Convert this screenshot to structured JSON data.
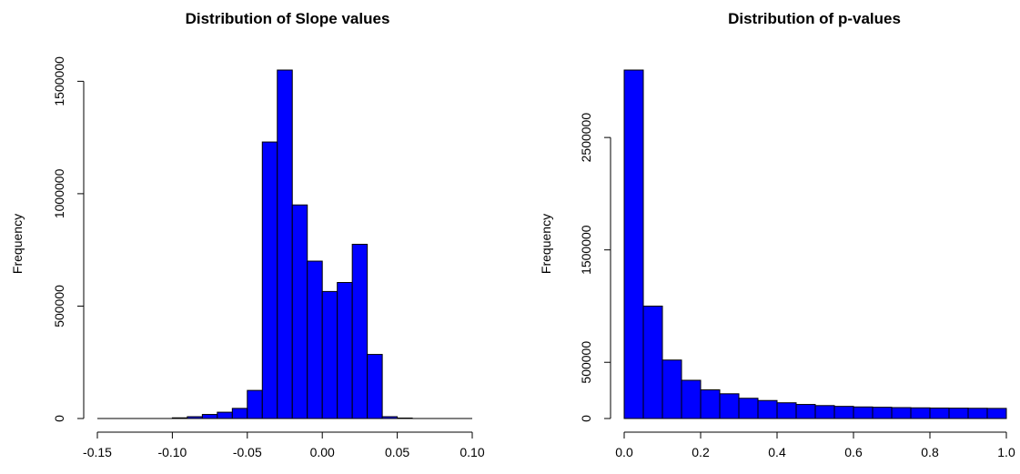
{
  "colors": {
    "bar_fill": "#0000ff",
    "bar_stroke": "#000000"
  },
  "chart_data": [
    {
      "type": "bar",
      "title": "Distribution of Slope values",
      "xlabel": "",
      "ylabel": "Frequency",
      "xlim": [
        -0.15,
        0.1
      ],
      "ylim": [
        0,
        1550000
      ],
      "x_ticks": [
        -0.15,
        -0.1,
        -0.05,
        0.0,
        0.05,
        0.1
      ],
      "x_tick_labels": [
        "-0.15",
        "-0.10",
        "-0.05",
        "0.00",
        "0.05",
        "0.10"
      ],
      "y_ticks": [
        0,
        500000,
        1000000,
        1500000
      ],
      "y_tick_labels": [
        "0",
        "500000",
        "1000000",
        "1500000"
      ],
      "bin_width": 0.01,
      "bin_starts": [
        -0.15,
        -0.14,
        -0.13,
        -0.12,
        -0.11,
        -0.1,
        -0.09,
        -0.08,
        -0.07,
        -0.06,
        -0.05,
        -0.04,
        -0.03,
        -0.02,
        -0.01,
        0.0,
        0.01,
        0.02,
        0.03,
        0.04,
        0.05,
        0.06,
        0.07,
        0.08,
        0.09
      ],
      "values": [
        0,
        0,
        0,
        0,
        0,
        3000,
        8000,
        18000,
        28000,
        45000,
        125000,
        1230000,
        1550000,
        950000,
        700000,
        565000,
        605000,
        775000,
        285000,
        8000,
        2000,
        0,
        0,
        0,
        0
      ],
      "grid": false
    },
    {
      "type": "bar",
      "title": "Distribution of p-values",
      "xlabel": "",
      "ylabel": "Frequency",
      "xlim": [
        0.0,
        1.0
      ],
      "ylim": [
        0,
        3100000
      ],
      "x_ticks": [
        0.0,
        0.2,
        0.4,
        0.6,
        0.8,
        1.0
      ],
      "x_tick_labels": [
        "0.0",
        "0.2",
        "0.4",
        "0.6",
        "0.8",
        "1.0"
      ],
      "y_ticks": [
        0,
        500000,
        1500000,
        2500000
      ],
      "y_tick_labels": [
        "0",
        "500000",
        "1500000",
        "2500000"
      ],
      "bin_width": 0.05,
      "bin_starts": [
        0.0,
        0.05,
        0.1,
        0.15,
        0.2,
        0.25,
        0.3,
        0.35,
        0.4,
        0.45,
        0.5,
        0.55,
        0.6,
        0.65,
        0.7,
        0.75,
        0.8,
        0.85,
        0.9,
        0.95
      ],
      "values": [
        3100000,
        1000000,
        520000,
        340000,
        255000,
        220000,
        180000,
        160000,
        140000,
        125000,
        115000,
        108000,
        103000,
        100000,
        97000,
        95000,
        93000,
        92000,
        91000,
        90000
      ],
      "grid": false
    }
  ]
}
